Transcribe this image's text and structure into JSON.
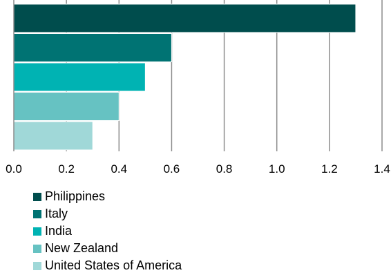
{
  "chart_data": {
    "type": "bar",
    "orientation": "horizontal",
    "categories": [
      "Philippines",
      "Italy",
      "India",
      "New Zealand",
      "United States of America"
    ],
    "values": [
      1.3,
      0.6,
      0.5,
      0.4,
      0.3
    ],
    "colors": [
      "#004d4d",
      "#007373",
      "#00b3b3",
      "#66c2c2",
      "#a0d8d8"
    ],
    "xlim": [
      0,
      1.4
    ],
    "xticks": [
      "0.0",
      "0.2",
      "0.4",
      "0.6",
      "0.8",
      "1.0",
      "1.2",
      "1.4"
    ],
    "grid": true,
    "legend_position": "bottom"
  }
}
